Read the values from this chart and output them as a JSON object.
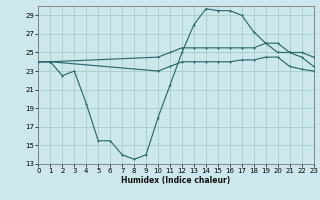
{
  "xlabel": "Humidex (Indice chaleur)",
  "bg_color": "#cce8ec",
  "grid_color": "#aacccc",
  "line_color": "#2d6b6b",
  "line1_x": [
    0,
    1,
    2,
    3,
    4,
    5,
    6,
    7,
    8,
    9,
    10,
    11,
    12,
    13,
    14,
    15,
    16,
    17,
    18,
    19,
    20,
    21,
    22,
    23
  ],
  "line1_y": [
    24,
    24,
    22.5,
    23,
    19.5,
    15.5,
    15.5,
    14,
    13.5,
    14,
    18,
    21.5,
    25,
    28,
    29.7,
    29.5,
    29.5,
    29,
    27.2,
    26,
    25,
    25,
    24.5,
    23.5
  ],
  "line2_x": [
    0,
    1,
    10,
    11,
    12,
    13,
    14,
    15,
    16,
    17,
    18,
    19,
    20,
    21,
    22,
    23
  ],
  "line2_y": [
    24,
    24,
    24.5,
    25,
    25.5,
    25.5,
    25.5,
    25.5,
    25.5,
    25.5,
    25.5,
    26,
    26,
    25,
    25,
    24.5
  ],
  "line3_x": [
    0,
    1,
    10,
    11,
    12,
    13,
    14,
    15,
    16,
    17,
    18,
    19,
    20,
    21,
    22,
    23
  ],
  "line3_y": [
    24,
    24,
    23,
    23.5,
    24,
    24,
    24,
    24,
    24,
    24.2,
    24.2,
    24.5,
    24.5,
    23.5,
    23.2,
    23
  ],
  "xlim": [
    0,
    23
  ],
  "ylim": [
    13,
    30
  ],
  "yticks": [
    13,
    15,
    17,
    19,
    21,
    23,
    25,
    27,
    29
  ],
  "xticks": [
    0,
    1,
    2,
    3,
    4,
    5,
    6,
    7,
    8,
    9,
    10,
    11,
    12,
    13,
    14,
    15,
    16,
    17,
    18,
    19,
    20,
    21,
    22,
    23
  ]
}
